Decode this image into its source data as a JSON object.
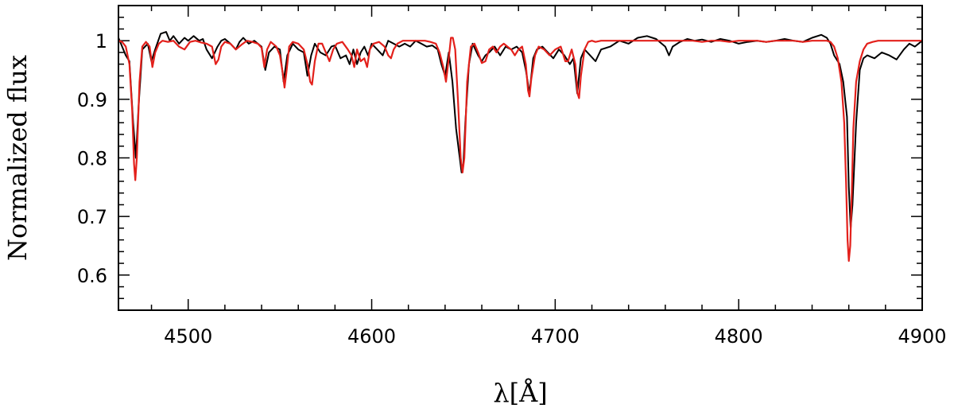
{
  "chart_data": {
    "type": "line",
    "title": "",
    "xlabel": "λ[Å]",
    "ylabel": "Normalized flux",
    "xlim": [
      4462,
      4900
    ],
    "ylim": [
      0.54,
      1.06
    ],
    "x_ticks": [
      4500,
      4600,
      4700,
      4800,
      4900
    ],
    "y_ticks": [
      0.6,
      0.7,
      0.8,
      0.9,
      1
    ],
    "x_tick_labels": [
      "4500",
      "4600",
      "4700",
      "4800",
      "4900"
    ],
    "y_tick_labels": [
      "0.6",
      "0.7",
      "0.8",
      "0.9",
      "1"
    ],
    "x_minor_step": 20,
    "y_minor_step": 0.02,
    "grid": false,
    "legend": "none",
    "series": [
      {
        "color": "#000000",
        "x": [
          4462,
          4466,
          4468,
          4470,
          4471.5,
          4473,
          4475,
          4478,
          4480,
          4482,
          4485,
          4488,
          4490,
          4492,
          4495,
          4498,
          4500,
          4503,
          4506,
          4508,
          4510,
          4513,
          4516,
          4518,
          4520,
          4523,
          4526,
          4528,
          4530,
          4533,
          4536,
          4540,
          4542,
          4544,
          4547,
          4550,
          4552,
          4554,
          4557,
          4560,
          4563,
          4565,
          4567,
          4569,
          4572,
          4575,
          4578,
          4580,
          4583,
          4586,
          4588,
          4590,
          4592,
          4594,
          4596,
          4598,
          4600,
          4603,
          4606,
          4609,
          4612,
          4615,
          4618,
          4621,
          4624,
          4627,
          4630,
          4633,
          4636,
          4638,
          4640,
          4642,
          4644,
          4646,
          4648,
          4649,
          4650,
          4651,
          4653,
          4655,
          4658,
          4660,
          4662,
          4664,
          4667,
          4670,
          4673,
          4676,
          4679,
          4682,
          4684,
          4686,
          4688,
          4690,
          4693,
          4696,
          4699,
          4702,
          4705,
          4708,
          4710,
          4712,
          4714,
          4716,
          4719,
          4722,
          4725,
          4730,
          4735,
          4740,
          4745,
          4750,
          4755,
          4760,
          4762,
          4764,
          4768,
          4772,
          4776,
          4780,
          4785,
          4790,
          4795,
          4800,
          4805,
          4810,
          4815,
          4820,
          4825,
          4830,
          4835,
          4840,
          4845,
          4848,
          4850,
          4852,
          4855,
          4857,
          4859,
          4860,
          4861,
          4862,
          4864,
          4866,
          4868,
          4870,
          4874,
          4878,
          4882,
          4886,
          4890,
          4893,
          4896,
          4900
        ],
        "y": [
          1.005,
          0.975,
          0.965,
          0.86,
          0.8,
          0.89,
          0.985,
          0.995,
          0.965,
          0.985,
          1.012,
          1.015,
          1.0,
          1.008,
          0.995,
          1.005,
          1.0,
          1.008,
          1.0,
          1.003,
          0.985,
          0.97,
          0.99,
          1.0,
          1.003,
          0.995,
          0.985,
          0.998,
          1.005,
          0.995,
          1.0,
          0.99,
          0.95,
          0.98,
          0.99,
          0.985,
          0.93,
          0.975,
          0.995,
          0.985,
          0.98,
          0.94,
          0.975,
          0.995,
          0.98,
          0.975,
          0.99,
          0.992,
          0.97,
          0.975,
          0.96,
          0.985,
          0.96,
          0.98,
          0.99,
          0.975,
          0.995,
          0.985,
          0.975,
          1.0,
          0.995,
          0.99,
          0.995,
          0.99,
          1.0,
          0.995,
          0.99,
          0.992,
          0.985,
          0.96,
          0.94,
          0.98,
          0.93,
          0.85,
          0.8,
          0.775,
          0.79,
          0.86,
          0.96,
          0.995,
          0.975,
          0.965,
          0.975,
          0.98,
          0.99,
          0.975,
          0.99,
          0.985,
          0.99,
          0.98,
          0.95,
          0.91,
          0.97,
          0.985,
          0.99,
          0.98,
          0.97,
          0.985,
          0.975,
          0.96,
          0.97,
          0.91,
          0.97,
          0.985,
          0.975,
          0.965,
          0.985,
          0.99,
          1.0,
          0.995,
          1.005,
          1.008,
          1.003,
          0.99,
          0.975,
          0.99,
          0.998,
          1.003,
          1.0,
          1.002,
          0.998,
          1.003,
          1.0,
          0.995,
          0.998,
          1.0,
          0.998,
          1.0,
          1.003,
          1.0,
          0.998,
          1.005,
          1.01,
          1.005,
          0.995,
          0.975,
          0.96,
          0.93,
          0.87,
          0.75,
          0.68,
          0.72,
          0.86,
          0.95,
          0.97,
          0.975,
          0.97,
          0.98,
          0.975,
          0.968,
          0.985,
          0.995,
          0.99,
          1.0
        ]
      },
      {
        "color": "#e3201b",
        "x": [
          4462,
          4464,
          4466,
          4468,
          4469.5,
          4470.5,
          4471.2,
          4472,
          4473.5,
          4475,
          4477,
          4479,
          4480.5,
          4482,
          4484,
          4486,
          4489,
          4492,
          4495,
          4498,
          4501,
          4504,
          4507,
          4510,
          4513,
          4515,
          4516.5,
          4518,
          4520,
          4523,
          4526,
          4529,
          4532,
          4535,
          4538,
          4540,
          4541.5,
          4543,
          4545,
          4548,
          4550,
          4551.5,
          4552.5,
          4553.5,
          4555,
          4557,
          4560,
          4563,
          4565,
          4566.5,
          4567.5,
          4569,
          4571,
          4573,
          4575,
          4577,
          4579,
          4581,
          4584,
          4587,
          4589,
          4590.5,
          4592,
          4594,
          4596,
          4597.5,
          4599,
          4601,
          4604,
          4607,
          4609,
          4610.5,
          4612,
          4614,
          4617,
          4620,
          4623,
          4626,
          4629,
          4632,
          4635,
          4637,
          4639,
          4640.5,
          4642,
          4643.2,
          4644.2,
          4645.5,
          4647,
          4648.5,
          4649.5,
          4650.5,
          4652,
          4654,
          4656,
          4658,
          4660,
          4662,
          4664,
          4666,
          4668,
          4670,
          4672,
          4674,
          4676,
          4678,
          4680,
          4682,
          4684,
          4685.2,
          4686,
          4687,
          4689,
          4691,
          4694,
          4697,
          4700,
          4703,
          4705.5,
          4707,
          4709,
          4711,
          4712.2,
          4713,
          4714,
          4716,
          4718,
          4720,
          4722,
          4725,
          4730,
          4735,
          4740,
          4745,
          4750,
          4755,
          4760,
          4765,
          4770,
          4775,
          4780,
          4785,
          4790,
          4795,
          4800,
          4805,
          4810,
          4815,
          4820,
          4825,
          4830,
          4835,
          4840,
          4845,
          4848,
          4850,
          4852,
          4854,
          4856,
          4857.5,
          4858.5,
          4859.3,
          4860,
          4860.8,
          4861.6,
          4862.5,
          4864,
          4866,
          4868,
          4870,
          4873,
          4876,
          4880,
          4885,
          4890,
          4895,
          4900
        ],
        "y": [
          1.0,
          0.998,
          0.99,
          0.96,
          0.88,
          0.79,
          0.762,
          0.8,
          0.93,
          0.99,
          0.998,
          0.99,
          0.955,
          0.98,
          0.995,
          1.0,
          0.998,
          1.0,
          0.99,
          0.985,
          0.998,
          1.0,
          0.997,
          0.995,
          0.99,
          0.96,
          0.968,
          0.99,
          0.998,
          0.995,
          0.985,
          0.993,
          1.0,
          0.998,
          0.995,
          0.988,
          0.955,
          0.985,
          0.998,
          0.99,
          0.975,
          0.945,
          0.92,
          0.945,
          0.99,
          0.998,
          0.995,
          0.985,
          0.96,
          0.93,
          0.925,
          0.965,
          0.995,
          0.995,
          0.98,
          0.965,
          0.985,
          0.995,
          0.998,
          0.985,
          0.975,
          0.955,
          0.985,
          0.965,
          0.97,
          0.955,
          0.985,
          0.995,
          0.998,
          0.99,
          0.975,
          0.97,
          0.985,
          0.995,
          1.0,
          1.0,
          1.0,
          1.0,
          1.0,
          0.998,
          0.995,
          0.98,
          0.955,
          0.93,
          0.97,
          1.005,
          1.005,
          0.985,
          0.9,
          0.8,
          0.775,
          0.8,
          0.93,
          0.99,
          0.995,
          0.98,
          0.962,
          0.965,
          0.985,
          0.99,
          0.98,
          0.99,
          0.995,
          0.99,
          0.985,
          0.975,
          0.985,
          0.99,
          0.96,
          0.915,
          0.905,
          0.935,
          0.975,
          0.99,
          0.985,
          0.975,
          0.985,
          0.99,
          0.965,
          0.965,
          0.985,
          0.96,
          0.91,
          0.902,
          0.94,
          0.985,
          0.998,
          1.0,
          0.998,
          1.0,
          1.0,
          1.0,
          1.0,
          1.0,
          1.0,
          1.0,
          1.0,
          1.0,
          1.0,
          1.0,
          0.998,
          1.0,
          1.0,
          0.998,
          1.0,
          1.0,
          1.0,
          0.998,
          1.0,
          1.0,
          1.0,
          0.998,
          1.0,
          1.0,
          1.0,
          0.998,
          0.99,
          0.97,
          0.93,
          0.86,
          0.76,
          0.66,
          0.624,
          0.65,
          0.74,
          0.85,
          0.93,
          0.965,
          0.985,
          0.995,
          0.998,
          1.0,
          1.0,
          1.0,
          1.0,
          1.0,
          1.0
        ]
      }
    ]
  }
}
